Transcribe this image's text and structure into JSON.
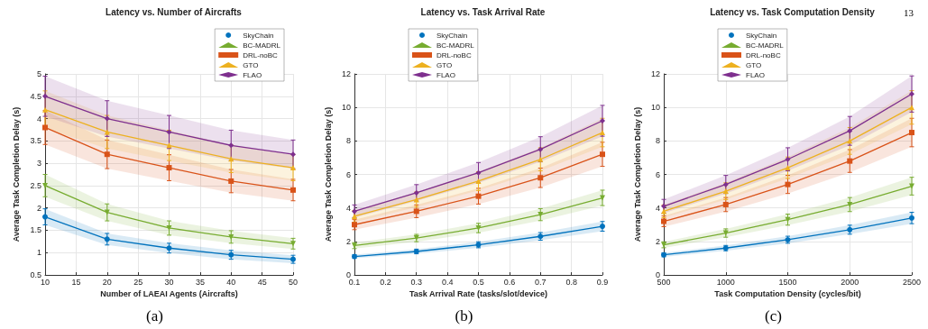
{
  "chart_data": [
    {
      "type": "line",
      "title": "Latency vs. Number of Aircrafts",
      "xlabel": "Number of LAEAI Agents (Aircrafts)",
      "ylabel": "Average Task Completion Delay (s)",
      "annotations": [
        "(a)"
      ],
      "x": [
        10,
        20,
        30,
        40,
        50
      ],
      "xlim": [
        10,
        50
      ],
      "xticks": [
        10,
        15,
        20,
        25,
        30,
        35,
        40,
        45,
        50
      ],
      "ylim": [
        0.5,
        5
      ],
      "yticks": [
        0.5,
        1,
        1.5,
        2,
        2.5,
        3,
        3.5,
        4,
        4.5,
        5
      ],
      "grid": true,
      "legend": "top right",
      "line_style": "solid",
      "series": [
        {
          "name": "SkyChain",
          "color": "#0072bd",
          "marker": "circle",
          "values": [
            1.8,
            1.3,
            1.1,
            0.95,
            0.85
          ],
          "errors": [
            0.18,
            0.13,
            0.11,
            0.1,
            0.09
          ],
          "lower": [
            1.62,
            1.17,
            0.99,
            0.85,
            0.76
          ],
          "upper": [
            1.98,
            1.43,
            1.21,
            1.05,
            0.94
          ]
        },
        {
          "name": "BC-MADRL",
          "color": "#77ac30",
          "marker": "triangle-down",
          "values": [
            2.5,
            1.9,
            1.55,
            1.35,
            1.2
          ],
          "errors": [
            0.25,
            0.19,
            0.16,
            0.14,
            0.12
          ],
          "lower": [
            2.25,
            1.71,
            1.39,
            1.21,
            1.08
          ],
          "upper": [
            2.75,
            2.09,
            1.71,
            1.49,
            1.32
          ]
        },
        {
          "name": "DRL-noBC",
          "color": "#d95319",
          "marker": "square",
          "values": [
            3.8,
            3.2,
            2.9,
            2.6,
            2.4
          ],
          "errors": [
            0.38,
            0.32,
            0.29,
            0.26,
            0.24
          ],
          "lower": [
            3.42,
            2.88,
            2.61,
            2.34,
            2.16
          ],
          "upper": [
            4.18,
            3.52,
            3.19,
            2.86,
            2.64
          ]
        },
        {
          "name": "GTO",
          "color": "#edb120",
          "marker": "triangle",
          "values": [
            4.2,
            3.7,
            3.4,
            3.1,
            2.9
          ],
          "errors": [
            0.42,
            0.37,
            0.34,
            0.31,
            0.29
          ],
          "lower": [
            3.78,
            3.33,
            3.06,
            2.79,
            2.61
          ],
          "upper": [
            4.62,
            4.07,
            3.74,
            3.41,
            3.19
          ]
        },
        {
          "name": "FLAO",
          "color": "#7e2f8e",
          "marker": "diamond",
          "values": [
            4.5,
            4.0,
            3.7,
            3.4,
            3.2
          ],
          "errors": [
            0.45,
            0.4,
            0.37,
            0.34,
            0.32
          ],
          "lower": [
            4.05,
            3.6,
            3.33,
            3.06,
            2.88
          ],
          "upper": [
            4.95,
            4.4,
            4.07,
            3.74,
            3.52
          ]
        }
      ]
    },
    {
      "type": "line",
      "title": "Latency vs. Task Arrival Rate",
      "xlabel": "Task Arrival Rate (tasks/slot/device)",
      "ylabel": "Average Task Completion Delay (s)",
      "annotations": [
        "(b)"
      ],
      "x": [
        0.1,
        0.3,
        0.5,
        0.7,
        0.9
      ],
      "xlim": [
        0.1,
        0.9
      ],
      "xticks": [
        0.1,
        0.2,
        0.3,
        0.4,
        0.5,
        0.6,
        0.7,
        0.8,
        0.9
      ],
      "ylim": [
        0,
        12
      ],
      "yticks": [
        0,
        2,
        4,
        6,
        8,
        10,
        12
      ],
      "grid": true,
      "legend": "top left",
      "line_style": "solid",
      "series": [
        {
          "name": "SkyChain",
          "color": "#0072bd",
          "marker": "circle",
          "values": [
            1.1,
            1.4,
            1.8,
            2.3,
            2.9
          ],
          "errors": [
            0.11,
            0.14,
            0.18,
            0.23,
            0.29
          ],
          "lower": [
            0.99,
            1.26,
            1.62,
            2.07,
            2.61
          ],
          "upper": [
            1.21,
            1.54,
            1.98,
            2.53,
            3.19
          ]
        },
        {
          "name": "BC-MADRL",
          "color": "#77ac30",
          "marker": "triangle-down",
          "values": [
            1.75,
            2.2,
            2.8,
            3.6,
            4.6
          ],
          "errors": [
            0.18,
            0.22,
            0.28,
            0.36,
            0.46
          ],
          "lower": [
            1.57,
            1.98,
            2.52,
            3.24,
            4.14
          ],
          "upper": [
            1.93,
            2.42,
            3.08,
            3.96,
            5.06
          ]
        },
        {
          "name": "DRL-noBC",
          "color": "#d95319",
          "marker": "square",
          "values": [
            3.0,
            3.8,
            4.7,
            5.8,
            7.2
          ],
          "errors": [
            0.3,
            0.38,
            0.47,
            0.58,
            0.72
          ],
          "lower": [
            2.7,
            3.42,
            4.23,
            5.22,
            6.48
          ],
          "upper": [
            3.3,
            4.18,
            5.17,
            6.38,
            7.92
          ]
        },
        {
          "name": "GTO",
          "color": "#edb120",
          "marker": "triangle",
          "values": [
            3.5,
            4.5,
            5.6,
            6.9,
            8.5
          ],
          "errors": [
            0.35,
            0.45,
            0.56,
            0.69,
            0.85
          ],
          "lower": [
            3.15,
            4.05,
            5.04,
            6.21,
            7.65
          ],
          "upper": [
            3.85,
            4.95,
            6.16,
            7.59,
            9.35
          ]
        },
        {
          "name": "FLAO",
          "color": "#7e2f8e",
          "marker": "diamond",
          "values": [
            3.8,
            4.9,
            6.1,
            7.5,
            9.2
          ],
          "errors": [
            0.38,
            0.49,
            0.61,
            0.75,
            0.92
          ],
          "lower": [
            3.42,
            4.41,
            5.49,
            6.75,
            8.28
          ],
          "upper": [
            4.18,
            5.39,
            6.71,
            8.25,
            10.12
          ]
        }
      ]
    },
    {
      "type": "line",
      "title": "Latency vs. Task Computation Density",
      "xlabel": "Task Computation Density (cycles/bit)",
      "ylabel": "Average Task Completion Delay (s)",
      "annotations": [
        "(c)",
        "13"
      ],
      "x": [
        500,
        1000,
        1500,
        2000,
        2500
      ],
      "xlim": [
        500,
        2500
      ],
      "xticks": [
        500,
        1000,
        1500,
        2000,
        2500
      ],
      "ylim": [
        0,
        12
      ],
      "yticks": [
        0,
        2,
        4,
        6,
        8,
        10,
        12
      ],
      "grid": true,
      "legend": "top left",
      "line_style": "solid",
      "series": [
        {
          "name": "SkyChain",
          "color": "#0072bd",
          "marker": "circle",
          "values": [
            1.2,
            1.6,
            2.1,
            2.7,
            3.4
          ],
          "errors": [
            0.12,
            0.16,
            0.21,
            0.27,
            0.34
          ],
          "lower": [
            1.08,
            1.44,
            1.89,
            2.43,
            3.06
          ],
          "upper": [
            1.32,
            1.76,
            2.31,
            2.97,
            3.74
          ]
        },
        {
          "name": "BC-MADRL",
          "color": "#77ac30",
          "marker": "triangle-down",
          "values": [
            1.8,
            2.5,
            3.3,
            4.2,
            5.3
          ],
          "errors": [
            0.18,
            0.25,
            0.33,
            0.42,
            0.53
          ],
          "lower": [
            1.62,
            2.25,
            2.97,
            3.78,
            4.77
          ],
          "upper": [
            1.98,
            2.75,
            3.63,
            4.62,
            5.83
          ]
        },
        {
          "name": "DRL-noBC",
          "color": "#d95319",
          "marker": "square",
          "values": [
            3.2,
            4.2,
            5.4,
            6.8,
            8.5
          ],
          "errors": [
            0.32,
            0.42,
            0.54,
            0.68,
            0.85
          ],
          "lower": [
            2.88,
            3.78,
            4.86,
            6.12,
            7.65
          ],
          "upper": [
            3.52,
            4.62,
            5.94,
            7.48,
            9.35
          ]
        },
        {
          "name": "GTO",
          "color": "#edb120",
          "marker": "triangle",
          "values": [
            3.8,
            5.0,
            6.4,
            8.0,
            10.0
          ],
          "errors": [
            0.38,
            0.5,
            0.64,
            0.8,
            1.0
          ],
          "lower": [
            3.42,
            4.5,
            5.76,
            7.2,
            9.0
          ],
          "upper": [
            4.18,
            5.5,
            7.04,
            8.8,
            11.0
          ]
        },
        {
          "name": "FLAO",
          "color": "#7e2f8e",
          "marker": "diamond",
          "values": [
            4.1,
            5.4,
            6.9,
            8.6,
            10.8
          ],
          "errors": [
            0.41,
            0.54,
            0.69,
            0.86,
            1.08
          ],
          "lower": [
            3.69,
            4.86,
            6.21,
            7.74,
            9.72
          ],
          "upper": [
            4.51,
            5.94,
            7.59,
            9.46,
            11.88
          ]
        }
      ]
    }
  ]
}
